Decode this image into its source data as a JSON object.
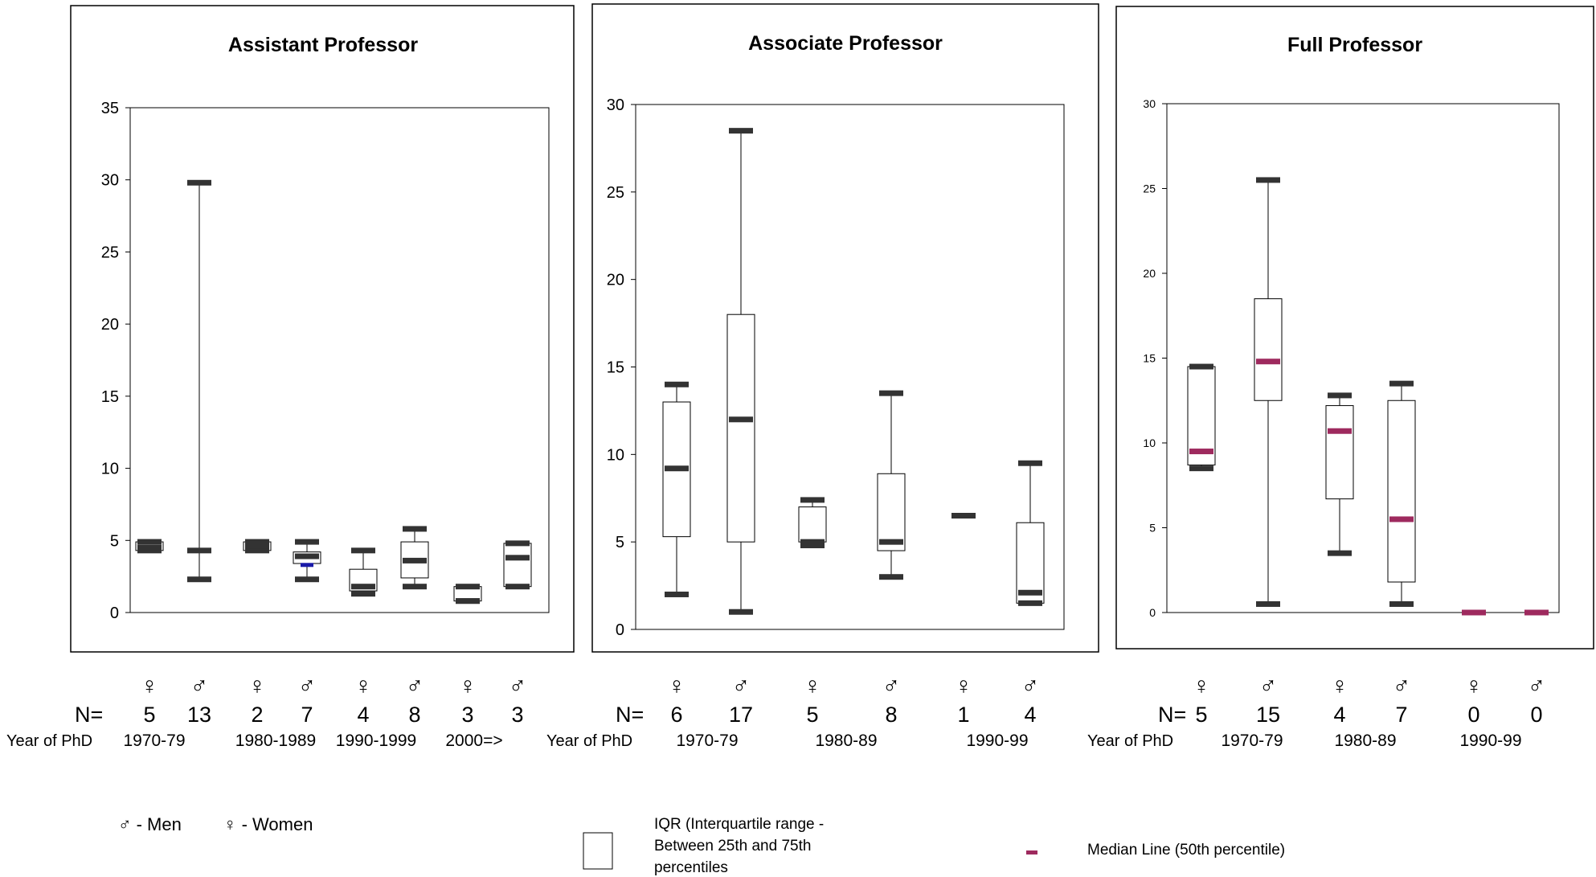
{
  "legend": {
    "men": "♂ - Men",
    "women": "♀ - Women",
    "iqr_lines": [
      "IQR (Interquartile range -",
      "Between 25th and 75th",
      "percentiles"
    ],
    "median": "Median Line (50th percentile)",
    "median_color": "#9e2a5e"
  },
  "symbols": {
    "female": "♀",
    "male": "♂"
  },
  "colors": {
    "cap": "#333333",
    "median_assistant": "#333333",
    "median_full": "#9e2a5e",
    "highlight": "#1a1aa8"
  },
  "chart_data": [
    {
      "type": "box",
      "title": "Assistant Professor",
      "ylim": [
        0,
        35
      ],
      "yticks": [
        0,
        5,
        10,
        15,
        20,
        25,
        30,
        35
      ],
      "n_label": "N=",
      "row_label": "Year of PhD",
      "periods": [
        "1970-79",
        "1980-1989",
        "1990-1999",
        "2000=>"
      ],
      "groups": [
        {
          "sex": "female",
          "n": "5",
          "period": "1970-79",
          "min": 4.3,
          "q1": 4.3,
          "median": 4.5,
          "q3": 4.9,
          "max": 4.9
        },
        {
          "sex": "male",
          "n": "13",
          "period": "1970-79",
          "min": 2.3,
          "q1": 4.3,
          "median": 4.3,
          "q3": 4.3,
          "max": 29.8
        },
        {
          "sex": "female",
          "n": "2",
          "period": "1980-1989",
          "min": 4.3,
          "q1": 4.3,
          "median": 4.6,
          "q3": 4.9,
          "max": 4.9
        },
        {
          "sex": "male",
          "n": "7",
          "period": "1980-1989",
          "min": 2.3,
          "q1": 3.4,
          "median": 3.9,
          "q3": 4.2,
          "max": 4.9,
          "extra_mark": 3.3
        },
        {
          "sex": "female",
          "n": "4",
          "period": "1990-1999",
          "min": 1.3,
          "q1": 1.5,
          "median": 1.8,
          "q3": 3.0,
          "max": 4.3
        },
        {
          "sex": "male",
          "n": "8",
          "period": "1990-1999",
          "min": 1.8,
          "q1": 2.4,
          "median": 3.6,
          "q3": 4.9,
          "max": 5.8
        },
        {
          "sex": "female",
          "n": "3",
          "period": "2000=>",
          "min": 0.8,
          "q1": 0.8,
          "median": 0.8,
          "q3": 1.8,
          "max": 1.8
        },
        {
          "sex": "male",
          "n": "3",
          "period": "2000=>",
          "min": 1.8,
          "q1": 1.8,
          "median": 3.8,
          "q3": 4.8,
          "max": 4.8
        }
      ]
    },
    {
      "type": "box",
      "title": "Associate Professor",
      "ylim": [
        0,
        30
      ],
      "yticks": [
        0,
        5,
        10,
        15,
        20,
        25,
        30
      ],
      "n_label": "N=",
      "row_label": "Year of PhD",
      "periods": [
        "1970-79",
        "1980-89",
        "1990-99"
      ],
      "groups": [
        {
          "sex": "female",
          "n": "6",
          "period": "1970-79",
          "min": 2.0,
          "q1": 5.3,
          "median": 9.2,
          "q3": 13.0,
          "max": 14.0
        },
        {
          "sex": "male",
          "n": "17",
          "period": "1970-79",
          "min": 1.0,
          "q1": 5.0,
          "median": 12.0,
          "q3": 18.0,
          "max": 28.5
        },
        {
          "sex": "female",
          "n": "5",
          "period": "1980-89",
          "min": 4.8,
          "q1": 5.0,
          "median": 5.0,
          "q3": 7.0,
          "max": 7.4
        },
        {
          "sex": "male",
          "n": "8",
          "period": "1980-89",
          "min": 3.0,
          "q1": 4.5,
          "median": 5.0,
          "q3": 8.9,
          "max": 13.5
        },
        {
          "sex": "female",
          "n": "1",
          "period": "1990-99",
          "min": 6.5,
          "q1": 6.5,
          "median": 6.5,
          "q3": 6.5,
          "max": 6.5
        },
        {
          "sex": "male",
          "n": "4",
          "period": "1990-99",
          "min": 1.5,
          "q1": 1.5,
          "median": 2.1,
          "q3": 6.1,
          "max": 9.5
        }
      ]
    },
    {
      "type": "box",
      "title": "Full Professor",
      "ylim": [
        0,
        30
      ],
      "yticks": [
        0,
        5,
        10,
        15,
        20,
        25,
        30
      ],
      "n_label": "N=",
      "row_label": "Year of PhD",
      "periods": [
        "1970-79",
        "1980-89",
        "1990-99"
      ],
      "groups": [
        {
          "sex": "female",
          "n": "5",
          "period": "1970-79",
          "min": 8.5,
          "q1": 8.7,
          "median": 9.5,
          "q3": 14.5,
          "max": 14.5
        },
        {
          "sex": "male",
          "n": "15",
          "period": "1970-79",
          "min": 0.5,
          "q1": 12.5,
          "median": 14.8,
          "q3": 18.5,
          "max": 25.5
        },
        {
          "sex": "female",
          "n": "4",
          "period": "1980-89",
          "min": 3.5,
          "q1": 6.7,
          "median": 10.7,
          "q3": 12.2,
          "max": 12.8
        },
        {
          "sex": "male",
          "n": "7",
          "period": "1980-89",
          "min": 0.5,
          "q1": 1.8,
          "median": 5.5,
          "q3": 12.5,
          "max": 13.5
        },
        {
          "sex": "female",
          "n": "0",
          "period": "1990-99",
          "min": 0,
          "q1": 0,
          "median": 0,
          "q3": 0,
          "max": 0
        },
        {
          "sex": "male",
          "n": "0",
          "period": "1990-99",
          "min": 0,
          "q1": 0,
          "median": 0,
          "q3": 0,
          "max": 0
        }
      ]
    }
  ]
}
